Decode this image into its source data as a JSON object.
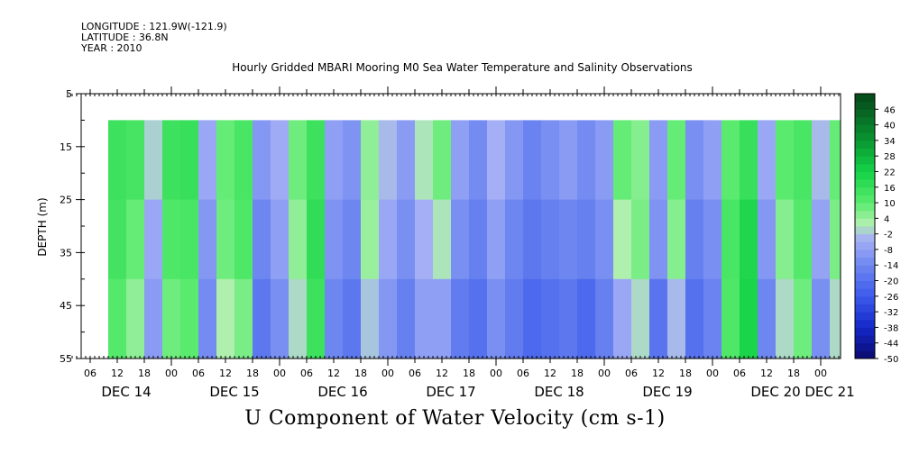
{
  "header": {
    "longitude": "LONGITUDE : 121.9W(-121.9)",
    "latitude": "LATITUDE : 36.8N",
    "year": "YEAR : 2010"
  },
  "chart_data": {
    "type": "heatmap",
    "title": "Hourly Gridded MBARI Mooring M0 Sea Water Temperature and Salinity Observations",
    "xlabel": "U Component of Water Velocity (cm s-1)",
    "ylabel": "DEPTH (m)",
    "ylim": [
      55,
      5
    ],
    "y_ticks": [
      5,
      15,
      25,
      35,
      45,
      55
    ],
    "x_hour_ticks": [
      "06",
      "12",
      "18",
      "00",
      "06",
      "12",
      "18",
      "00",
      "06",
      "12",
      "18",
      "00",
      "06",
      "12",
      "18",
      "00",
      "06",
      "12",
      "18",
      "00",
      "06",
      "12",
      "18",
      "00",
      "06",
      "12",
      "18",
      "00",
      "06",
      "12",
      "18",
      "00"
    ],
    "x_day_labels": [
      "DEC 14",
      "DEC 15",
      "DEC 16",
      "DEC 17",
      "DEC 18",
      "DEC 19",
      "DEC 20",
      "DEC 21"
    ],
    "colorbar_ticks": [
      "46",
      "40",
      "34",
      "28",
      "22",
      "16",
      "10",
      "4",
      "-2",
      "-8",
      "-14",
      "-20",
      "-26",
      "-32",
      "-38",
      "-44",
      "-50"
    ],
    "colorbar_range": [
      -50,
      52
    ],
    "data_depth_range": [
      10,
      55
    ],
    "data_start_hour": 10,
    "time_hour_offsets": [
      0,
      4,
      8,
      12,
      16,
      20,
      24,
      28,
      32,
      36,
      40,
      44,
      48,
      52,
      56,
      60,
      64,
      68,
      72,
      76,
      80,
      84,
      88,
      92,
      96,
      100,
      104,
      108,
      112,
      116,
      120,
      124,
      128,
      132,
      136,
      140,
      144,
      148,
      152,
      156,
      160,
      164
    ],
    "depth_levels": [
      10,
      25,
      40,
      55
    ],
    "values": [
      [
        14,
        16,
        12,
        10
      ],
      [
        15,
        12,
        6,
        4
      ],
      [
        2,
        -4,
        -8,
        -10
      ],
      [
        16,
        14,
        10,
        6
      ],
      [
        18,
        14,
        12,
        8
      ],
      [
        -4,
        -8,
        -12,
        -14
      ],
      [
        8,
        10,
        6,
        -2
      ],
      [
        12,
        14,
        10,
        4
      ],
      [
        -8,
        -12,
        -16,
        -20
      ],
      [
        -4,
        -6,
        -10,
        -14
      ],
      [
        10,
        6,
        4,
        -4
      ],
      [
        14,
        16,
        18,
        12
      ],
      [
        -6,
        -10,
        -12,
        -16
      ],
      [
        -10,
        -12,
        -16,
        -20
      ],
      [
        4,
        6,
        2,
        -6
      ],
      [
        -2,
        -4,
        -8,
        -12
      ],
      [
        -8,
        -10,
        -14,
        -18
      ],
      [
        4,
        -2,
        -6,
        -10
      ],
      [
        10,
        6,
        -4,
        -12
      ],
      [
        -6,
        -10,
        -14,
        -20
      ],
      [
        -12,
        -14,
        -18,
        -22
      ],
      [
        -2,
        -6,
        -10,
        -14
      ],
      [
        -8,
        -12,
        -16,
        -18
      ],
      [
        -14,
        -16,
        -20,
        -24
      ],
      [
        -10,
        -14,
        -18,
        -22
      ],
      [
        -6,
        -12,
        -16,
        -20
      ],
      [
        -12,
        -14,
        -18,
        -26
      ],
      [
        -8,
        -10,
        -14,
        -18
      ],
      [
        12,
        6,
        -2,
        -10
      ],
      [
        4,
        8,
        6,
        -6
      ],
      [
        -10,
        -8,
        -14,
        -24
      ],
      [
        10,
        8,
        4,
        -10
      ],
      [
        -10,
        -14,
        -18,
        -22
      ],
      [
        -6,
        -10,
        -14,
        -16
      ],
      [
        8,
        12,
        14,
        10
      ],
      [
        14,
        18,
        22,
        20
      ],
      [
        -4,
        -8,
        -12,
        -16
      ],
      [
        12,
        8,
        4,
        -4
      ],
      [
        14,
        12,
        10,
        6
      ],
      [
        -2,
        -4,
        -10,
        -14
      ],
      [
        10,
        8,
        6,
        -6
      ],
      [
        16,
        18,
        14,
        8
      ]
    ]
  }
}
